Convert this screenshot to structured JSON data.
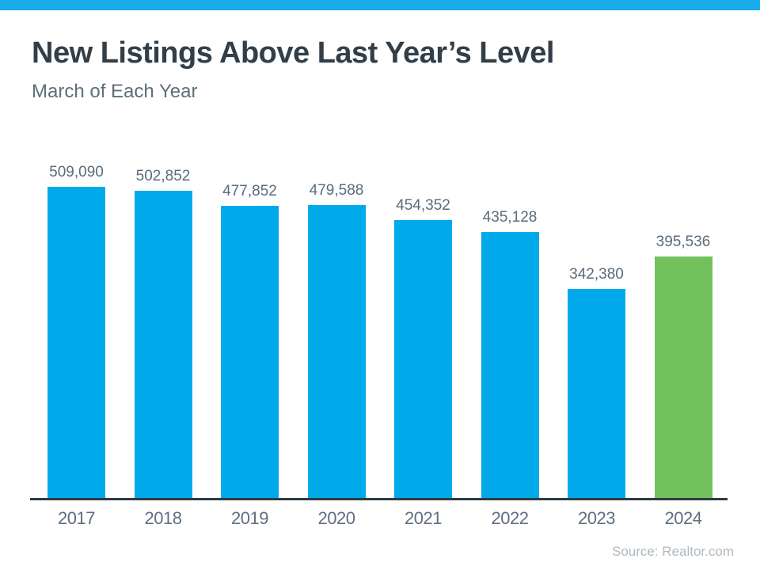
{
  "page": {
    "title": "New Listings Above Last Year’s Level",
    "subtitle": "March of Each Year",
    "source": "Source: Realtor.com"
  },
  "colors": {
    "top_bar": "#18ACEC",
    "bar_blue": "#00A9E9",
    "bar_green": "#72C15C",
    "title_text": "#323E48",
    "subtitle_text": "#5C7077",
    "value_label_text": "#5A6B7B",
    "year_label_text": "#5E6E80",
    "axis_line": "#2E3A42",
    "source_text": "#AFB9C0"
  },
  "chart_data": {
    "type": "bar",
    "title": "New Listings Above Last Year’s Level",
    "subtitle": "March of Each Year",
    "categories": [
      "2017",
      "2018",
      "2019",
      "2020",
      "2021",
      "2022",
      "2023",
      "2024"
    ],
    "values": [
      509090,
      502852,
      477852,
      479588,
      454352,
      435128,
      342380,
      395536
    ],
    "value_labels": [
      "509,090",
      "502,852",
      "477,852",
      "479,588",
      "454,352",
      "435,128",
      "342,380",
      "395,536"
    ],
    "bar_colors": [
      "#00A9E9",
      "#00A9E9",
      "#00A9E9",
      "#00A9E9",
      "#00A9E9",
      "#00A9E9",
      "#00A9E9",
      "#72C15C"
    ],
    "highlighted_category": "2024",
    "xlabel": "",
    "ylabel": "",
    "ylim": [
      0,
      509090
    ],
    "grid": false,
    "legend": false,
    "data_labels": true,
    "source": "Source: Realtor.com"
  }
}
